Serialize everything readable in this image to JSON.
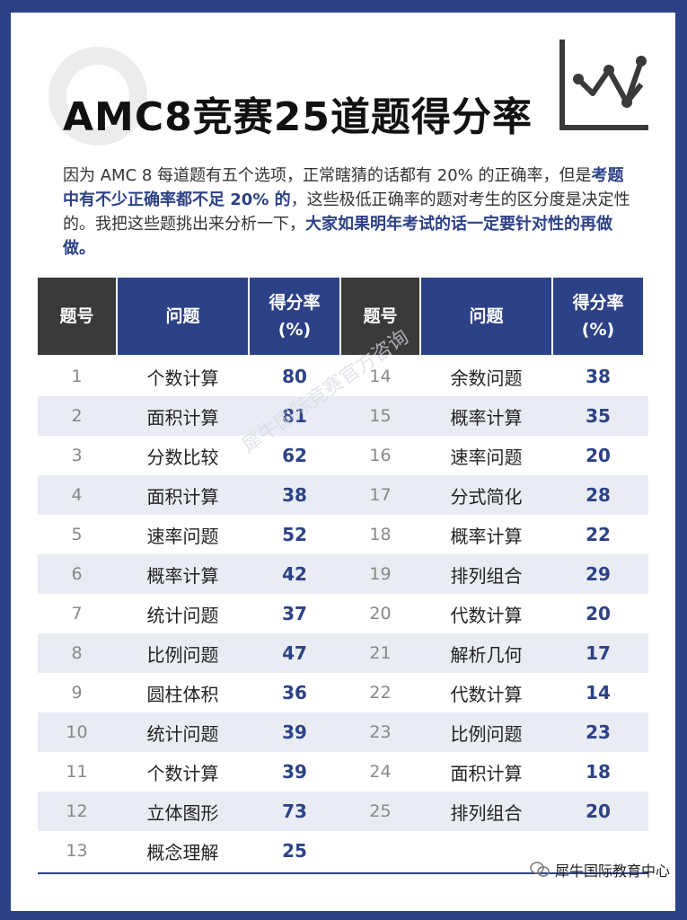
{
  "title": "AMC8竞赛25道题得分率",
  "intro": {
    "p1": "因为 AMC 8 每道题有五个选项，正常瞎猜的话都有 20% 的正确率，但是",
    "p2_hl": "考题中有不少正确率都不足 20% 的",
    "p3": "，这些极低正确率的题对考生的区分度是决定性的。我把这些题挑出来分析一下，",
    "p4_hl": "大家如果明年考试的话一定要针对性的再做做。"
  },
  "headers": {
    "num": "题号",
    "question": "问题",
    "rate_line1": "得分率",
    "rate_line2": "(%)"
  },
  "left_rows": [
    {
      "num": "1",
      "question": "个数计算",
      "rate": "80"
    },
    {
      "num": "2",
      "question": "面积计算",
      "rate": "81"
    },
    {
      "num": "3",
      "question": "分数比较",
      "rate": "62"
    },
    {
      "num": "4",
      "question": "面积计算",
      "rate": "38"
    },
    {
      "num": "5",
      "question": "速率问题",
      "rate": "52"
    },
    {
      "num": "6",
      "question": "概率计算",
      "rate": "42"
    },
    {
      "num": "7",
      "question": "统计问题",
      "rate": "37"
    },
    {
      "num": "8",
      "question": "比例问题",
      "rate": "47"
    },
    {
      "num": "9",
      "question": "圆柱体积",
      "rate": "36"
    },
    {
      "num": "10",
      "question": "统计问题",
      "rate": "39"
    },
    {
      "num": "11",
      "question": "个数计算",
      "rate": "39"
    },
    {
      "num": "12",
      "question": "立体图形",
      "rate": "73"
    },
    {
      "num": "13",
      "question": "概念理解",
      "rate": "25"
    }
  ],
  "right_rows": [
    {
      "num": "14",
      "question": "余数问题",
      "rate": "38"
    },
    {
      "num": "15",
      "question": "概率计算",
      "rate": "35"
    },
    {
      "num": "16",
      "question": "速率问题",
      "rate": "20"
    },
    {
      "num": "17",
      "question": "分式简化",
      "rate": "28"
    },
    {
      "num": "18",
      "question": "概率计算",
      "rate": "22"
    },
    {
      "num": "19",
      "question": "排列组合",
      "rate": "29"
    },
    {
      "num": "20",
      "question": "代数计算",
      "rate": "20"
    },
    {
      "num": "21",
      "question": "解析几何",
      "rate": "17"
    },
    {
      "num": "22",
      "question": "代数计算",
      "rate": "14"
    },
    {
      "num": "23",
      "question": "比例问题",
      "rate": "23"
    },
    {
      "num": "24",
      "question": "面积计算",
      "rate": "18"
    },
    {
      "num": "25",
      "question": "排列组合",
      "rate": "20"
    }
  ],
  "watermark": "犀牛国际竞赛官方咨询",
  "footer": "犀牛国际教育中心",
  "colors": {
    "accent": "#2d4286",
    "header_dark": "#3a3a3a",
    "row_shade": "#e9ecf2"
  },
  "icons": {
    "chart": "line-chart-icon",
    "footer": "wechat-icon"
  }
}
